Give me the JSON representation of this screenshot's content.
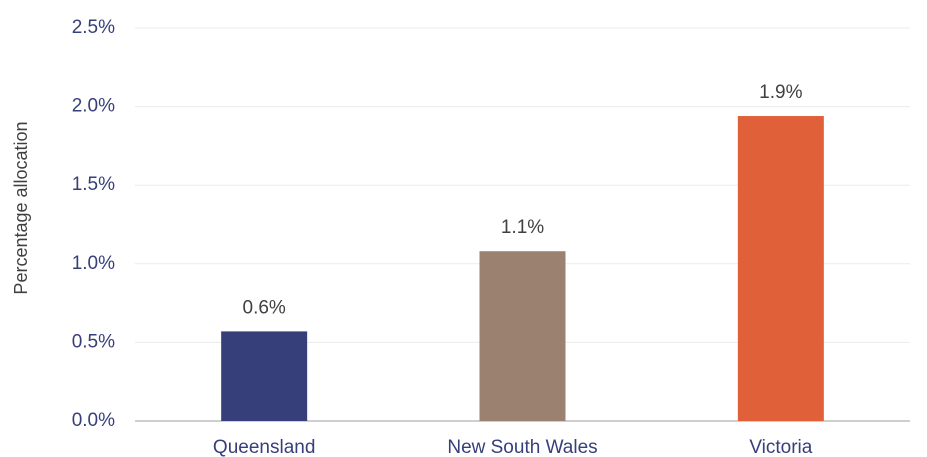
{
  "chart_data": {
    "type": "bar",
    "y_label": "Percentage allocation",
    "categories": [
      "Queensland",
      "New South Wales",
      "Victoria"
    ],
    "values": [
      0.57,
      1.08,
      1.94
    ],
    "value_labels": [
      "0.6%",
      "1.1%",
      "1.9%"
    ],
    "colors": [
      "#373f7a",
      "#9b8170",
      "#e0603a"
    ],
    "ylim": [
      0,
      2.5
    ],
    "yticks": [
      {
        "value": 0,
        "label": "0.0%"
      },
      {
        "value": 0.5,
        "label": "0.5%"
      },
      {
        "value": 1,
        "label": "1.0%"
      },
      {
        "value": 1.5,
        "label": "1.5%"
      },
      {
        "value": 2,
        "label": "2.0%"
      },
      {
        "value": 2.5,
        "label": "2.5%"
      }
    ],
    "grid": true
  }
}
